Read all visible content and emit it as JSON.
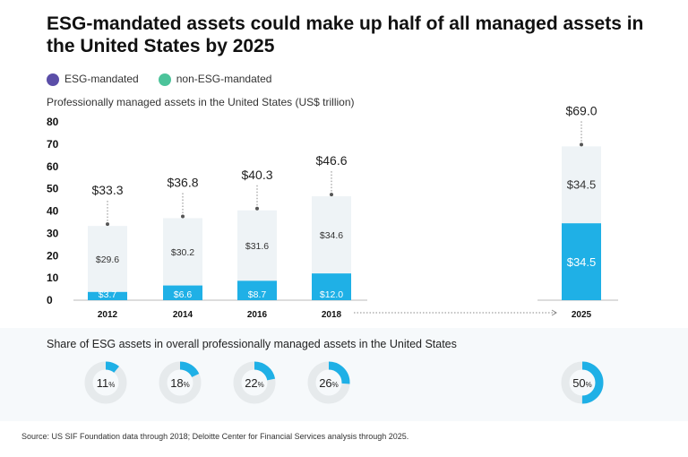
{
  "chart_data": {
    "type": "bar",
    "title": "ESG-mandated assets could make up half of all managed assets in the United States by 2025",
    "subtitle": "Professionally managed assets in the United States (US$ trillion)",
    "categories": [
      "2012",
      "2014",
      "2016",
      "2018",
      "2025"
    ],
    "series": [
      {
        "name": "ESG-mandated",
        "values": [
          3.7,
          6.6,
          8.7,
          12.0,
          34.5
        ],
        "labels": [
          "$3.7",
          "$6.6",
          "$8.7",
          "$12.0",
          "$34.5"
        ]
      },
      {
        "name": "non-ESG-mandated",
        "values": [
          29.6,
          30.2,
          31.6,
          34.6,
          34.5
        ],
        "labels": [
          "$29.6",
          "$30.2",
          "$31.6",
          "$34.6",
          "$34.5"
        ]
      }
    ],
    "totals": [
      "$33.3",
      "$36.8",
      "$40.3",
      "$46.6",
      "$69.0"
    ],
    "ylim": [
      0,
      80
    ],
    "yticks": [
      "0",
      "10",
      "20",
      "30",
      "40",
      "50",
      "60",
      "70",
      "80"
    ],
    "grid": false,
    "stacked": true,
    "legend_placement": "top-left",
    "share_title": "Share of ESG assets in overall professionally managed assets in the United States",
    "share_values": [
      11,
      18,
      22,
      26,
      50
    ],
    "share_labels": [
      "11",
      "18",
      "22",
      "26",
      "50"
    ],
    "percent_sign": "%",
    "source": "Source: US SIF Foundation data through 2018; Deloitte Center for Financial Services analysis through 2025.",
    "colors": {
      "esg_bar": "#1fb0e6",
      "non_esg_bar": "#eef3f6",
      "legend_esg": "#5b4ea8",
      "legend_non_esg": "#4cc39a",
      "donut_track": "#e6eaec"
    }
  }
}
